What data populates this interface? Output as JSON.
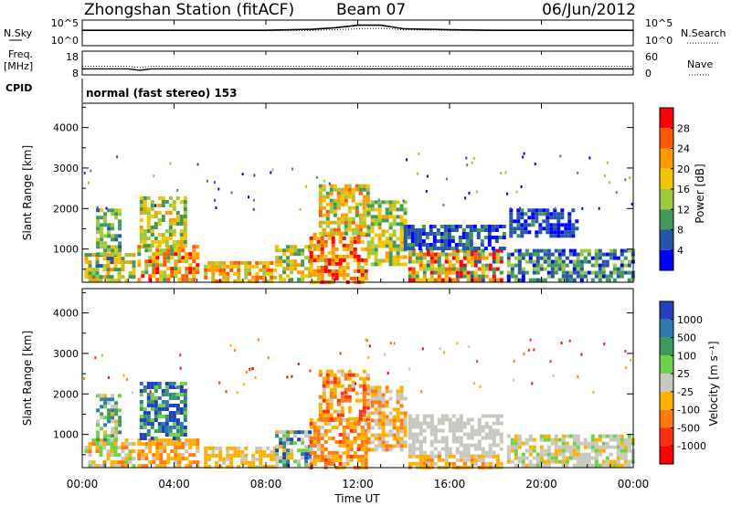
{
  "header": {
    "station": "Zhongshan Station (fitACF)",
    "beam": "Beam 07",
    "date": "06/Jun/2012"
  },
  "top_panels": {
    "nsky_label": "N.Sky",
    "nsky_ticks": [
      "10^5",
      "10^0"
    ],
    "nsearch_label": "N.Search",
    "nsearch_ticks": [
      "10^5",
      "10^0"
    ],
    "freq_label": "Freq.",
    "freq_unit": "[MHz]",
    "freq_ticks": [
      "18",
      "8"
    ],
    "nave_label": "Nave",
    "nave_ticks": [
      "60",
      "0"
    ],
    "cpid_label": "CPID",
    "cpid_text": "normal (fast stereo) 153"
  },
  "power_panel": {
    "ylabel": "Slant Range [km]",
    "colorbar_label": "Power [dB]",
    "colorbar_ticks": [
      "28",
      "24",
      "20",
      "16",
      "12",
      "8",
      "4"
    ],
    "colorbar_colors": [
      "#ff0000",
      "#ff5a00",
      "#ff9a00",
      "#f2c500",
      "#9fc93c",
      "#3f9a5a",
      "#2555a8",
      "#0000ff"
    ]
  },
  "velocity_panel": {
    "ylabel": "Slant Range [km]",
    "colorbar_label": "Velocity [m s⁻¹]",
    "colorbar_ticks": [
      "1000",
      "500",
      "100",
      "25",
      "-25",
      "-100",
      "-500",
      "-1000"
    ],
    "colorbar_colors": [
      "#2040c0",
      "#2e7ab0",
      "#3c9a5a",
      "#6fd04a",
      "#c8c8c0",
      "#ffb000",
      "#ff7a10",
      "#ff3010",
      "#ff0000"
    ]
  },
  "x_axis": {
    "label": "Time UT",
    "ticks": [
      "00:00",
      "04:00",
      "08:00",
      "12:00",
      "16:00",
      "20:00",
      "00:00"
    ]
  },
  "chart_data": [
    {
      "type": "line",
      "title": "N.Sky / N.Search",
      "x_unit": "hours UT",
      "x": [
        0,
        2,
        4,
        6,
        8,
        10,
        11,
        12,
        13,
        14,
        16,
        18,
        20,
        22,
        24
      ],
      "series": [
        {
          "name": "N.Sky",
          "values": [
            3,
            3,
            3,
            3,
            3,
            3.2,
            3.5,
            4,
            4,
            3.3,
            3.1,
            3,
            3,
            3,
            3
          ]
        },
        {
          "name": "N.Search",
          "values": [
            3,
            3,
            3,
            3,
            3,
            3,
            3.1,
            3.3,
            3.4,
            3.1,
            3,
            3,
            3,
            3,
            3
          ]
        }
      ],
      "ylim": [
        0,
        5
      ]
    },
    {
      "type": "line",
      "title": "Freq. / Nave",
      "x": [
        0,
        2,
        2.5,
        3,
        4,
        8,
        12,
        16,
        20,
        24
      ],
      "series": [
        {
          "name": "Freq.",
          "values": [
            12.1,
            12.1,
            11.2,
            12.1,
            12.1,
            12.1,
            12.1,
            12.1,
            12.1,
            12.1
          ]
        },
        {
          "name": "Nave",
          "values": [
            22,
            22,
            18,
            22,
            22,
            22,
            22,
            22,
            22,
            22
          ]
        }
      ]
    },
    {
      "type": "heatmap",
      "title": "Power [dB]",
      "xlim": [
        0,
        24
      ],
      "ylim": [
        180,
        4600
      ],
      "value_range": [
        0,
        30
      ],
      "regions": [
        {
          "t": [
            0.1,
            2.2
          ],
          "r": [
            200,
            900
          ],
          "v": [
            6,
            22
          ]
        },
        {
          "t": [
            0.6,
            1.6
          ],
          "r": [
            900,
            2000
          ],
          "v": [
            6,
            16
          ]
        },
        {
          "t": [
            2.4,
            5.1
          ],
          "r": [
            200,
            1100
          ],
          "v": [
            10,
            28
          ]
        },
        {
          "t": [
            2.5,
            4.5
          ],
          "r": [
            1100,
            2300
          ],
          "v": [
            8,
            20
          ]
        },
        {
          "t": [
            5.3,
            8.4
          ],
          "r": [
            200,
            700
          ],
          "v": [
            12,
            26
          ]
        },
        {
          "t": [
            8.4,
            9.9
          ],
          "r": [
            200,
            1100
          ],
          "v": [
            8,
            22
          ]
        },
        {
          "t": [
            9.9,
            12.3
          ],
          "r": [
            200,
            1400
          ],
          "v": [
            14,
            30
          ]
        },
        {
          "t": [
            10.3,
            12.4
          ],
          "r": [
            1400,
            2600
          ],
          "v": [
            10,
            24
          ]
        },
        {
          "t": [
            12.4,
            14.0
          ],
          "r": [
            600,
            2200
          ],
          "v": [
            8,
            20
          ]
        },
        {
          "t": [
            14.2,
            18.3
          ],
          "r": [
            200,
            1000
          ],
          "v": [
            6,
            30
          ]
        },
        {
          "t": [
            14.0,
            18.3
          ],
          "r": [
            1000,
            1600
          ],
          "v": [
            2,
            10
          ]
        },
        {
          "t": [
            18.5,
            24.0
          ],
          "r": [
            200,
            1000
          ],
          "v": [
            2,
            14
          ]
        },
        {
          "t": [
            18.6,
            21.5
          ],
          "r": [
            1300,
            2000
          ],
          "v": [
            2,
            8
          ]
        }
      ]
    },
    {
      "type": "heatmap",
      "title": "Velocity [m s⁻¹]",
      "xlim": [
        0,
        24
      ],
      "ylim": [
        180,
        4600
      ],
      "value_range": [
        -1000,
        1000
      ],
      "regions": [
        {
          "t": [
            0.1,
            2.2
          ],
          "r": [
            200,
            900
          ],
          "v": [
            -400,
            300
          ]
        },
        {
          "t": [
            0.6,
            1.6
          ],
          "r": [
            900,
            2000
          ],
          "v": [
            -200,
            800
          ]
        },
        {
          "t": [
            2.4,
            5.1
          ],
          "r": [
            200,
            900
          ],
          "v": [
            -500,
            -60
          ]
        },
        {
          "t": [
            2.5,
            4.5
          ],
          "r": [
            900,
            2300
          ],
          "v": [
            200,
            1100
          ]
        },
        {
          "t": [
            5.3,
            8.4
          ],
          "r": [
            200,
            700
          ],
          "v": [
            -300,
            -50
          ]
        },
        {
          "t": [
            8.4,
            9.9
          ],
          "r": [
            200,
            1100
          ],
          "v": [
            -200,
            900
          ]
        },
        {
          "t": [
            9.9,
            12.3
          ],
          "r": [
            200,
            1400
          ],
          "v": [
            -600,
            -80
          ]
        },
        {
          "t": [
            10.3,
            12.4
          ],
          "r": [
            1400,
            2600
          ],
          "v": [
            -700,
            -80
          ]
        },
        {
          "t": [
            12.4,
            14.0
          ],
          "r": [
            600,
            2200
          ],
          "v": [
            -500,
            100
          ]
        },
        {
          "t": [
            14.2,
            18.3
          ],
          "r": [
            500,
            1500
          ],
          "v": [
            -20,
            20
          ]
        },
        {
          "t": [
            14.2,
            18.3
          ],
          "r": [
            200,
            500
          ],
          "v": [
            -400,
            -30
          ]
        },
        {
          "t": [
            18.5,
            24.0
          ],
          "r": [
            200,
            1000
          ],
          "v": [
            -200,
            200
          ]
        }
      ]
    }
  ]
}
